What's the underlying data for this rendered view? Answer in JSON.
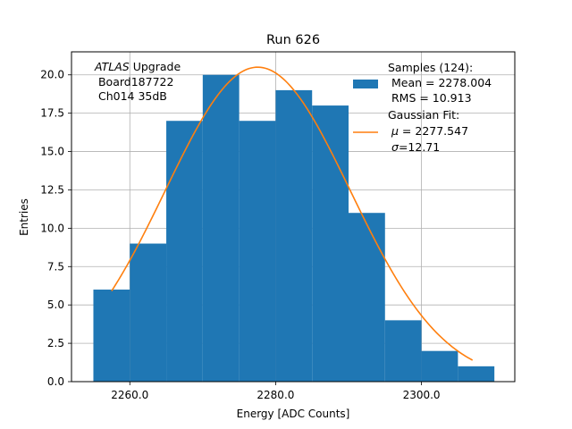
{
  "chart_data": {
    "type": "bar",
    "title": "Run 626",
    "xlabel": "Energy [ADC Counts]",
    "ylabel": "Entries",
    "xlim": [
      2252.0,
      2312.8
    ],
    "ylim": [
      0,
      21.5
    ],
    "grid": true,
    "x_ticks": [
      2260,
      2280,
      2300
    ],
    "x_tick_labels": [
      "2260.0",
      "2280.0",
      "2300.0"
    ],
    "y_ticks": [
      0,
      2.5,
      5,
      7.5,
      10,
      12.5,
      15,
      17.5,
      20
    ],
    "y_tick_labels": [
      "0.0",
      "2.5",
      "5.0",
      "7.5",
      "10.0",
      "12.5",
      "15.0",
      "17.5",
      "20.0"
    ],
    "bin_edges": [
      2255,
      2260,
      2265,
      2270,
      2275,
      2280,
      2285,
      2290,
      2295,
      2300,
      2305,
      2310
    ],
    "histogram_values": [
      6,
      9,
      17,
      20,
      17,
      19,
      18,
      11,
      4,
      2,
      1
    ],
    "gaussian_fit": {
      "mu": 2277.547,
      "sigma": 12.71,
      "amplitude": 20.5,
      "x_range": [
        2257.5,
        2307
      ]
    },
    "colors": {
      "bars": "#1f77b4",
      "fit": "#ff7f0e",
      "grid": "#b0b0b0"
    },
    "annotation": {
      "line1_italic": "ATLAS",
      "line1_rest": " Upgrade",
      "line2": " Board187722",
      "line3": " Ch014 35dB"
    },
    "legend": {
      "placement": "upper right",
      "samples_line1": "Samples (124):",
      "samples_line2": " Mean = 2278.004",
      "samples_line3": " RMS = 10.913",
      "fit_line1": "Gaussian Fit:",
      "fit_mu_symbol": "μ",
      "fit_mu_rest": " = 2277.547",
      "fit_sigma_symbol": "σ",
      "fit_sigma_rest": "=12.71"
    }
  }
}
